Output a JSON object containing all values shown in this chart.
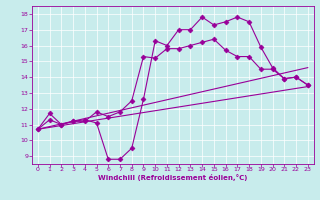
{
  "xlabel": "Windchill (Refroidissement éolien,°C)",
  "bg_color": "#c8ecec",
  "line_color": "#990099",
  "xlim": [
    -0.5,
    23.5
  ],
  "ylim": [
    8.5,
    18.5
  ],
  "xticks": [
    0,
    1,
    2,
    3,
    4,
    5,
    6,
    7,
    8,
    9,
    10,
    11,
    12,
    13,
    14,
    15,
    16,
    17,
    18,
    19,
    20,
    21,
    22,
    23
  ],
  "yticks": [
    9,
    10,
    11,
    12,
    13,
    14,
    15,
    16,
    17,
    18
  ],
  "series": [
    {
      "x": [
        0,
        1,
        2,
        3,
        4,
        5,
        6,
        7,
        8,
        9,
        10,
        11,
        12,
        13,
        14,
        15,
        16,
        17,
        18,
        19,
        20,
        21,
        22,
        23
      ],
      "y": [
        10.7,
        11.7,
        11.0,
        11.2,
        11.3,
        11.1,
        8.8,
        8.8,
        9.5,
        12.6,
        16.3,
        16.0,
        17.0,
        17.0,
        17.8,
        17.3,
        17.5,
        17.8,
        17.5,
        15.9,
        14.6,
        13.9,
        14.0,
        13.5
      ],
      "marker": "D",
      "markersize": 2.5,
      "linewidth": 0.8,
      "has_markers": true
    },
    {
      "x": [
        0,
        1,
        2,
        3,
        4,
        5,
        6,
        7,
        8,
        9,
        10,
        11,
        12,
        13,
        14,
        15,
        16,
        17,
        18,
        19,
        20,
        21,
        22,
        23
      ],
      "y": [
        10.7,
        11.3,
        11.0,
        11.2,
        11.2,
        11.8,
        11.5,
        11.8,
        12.5,
        15.3,
        15.2,
        15.8,
        15.8,
        16.0,
        16.2,
        16.4,
        15.7,
        15.3,
        15.3,
        14.5,
        14.5,
        13.9,
        14.0,
        13.5
      ],
      "marker": "D",
      "markersize": 2.5,
      "linewidth": 0.8,
      "has_markers": true
    },
    {
      "x": [
        0,
        23
      ],
      "y": [
        10.7,
        14.6
      ],
      "marker": null,
      "markersize": 0,
      "linewidth": 0.8,
      "has_markers": false
    },
    {
      "x": [
        0,
        23
      ],
      "y": [
        10.7,
        13.4
      ],
      "marker": null,
      "markersize": 0,
      "linewidth": 0.8,
      "has_markers": false
    }
  ]
}
